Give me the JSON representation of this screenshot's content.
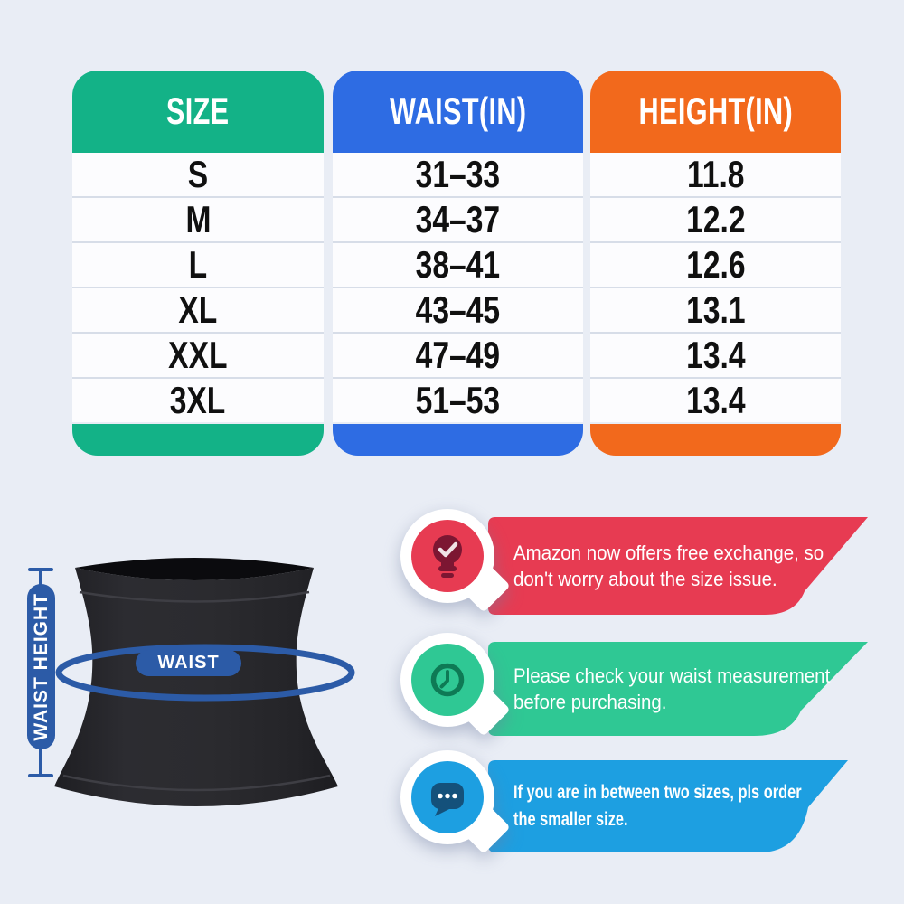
{
  "page": {
    "background": "#e9edf5",
    "row_background": "#fcfcfe",
    "row_separator": "#d7dde8",
    "cell_text_color": "#101010"
  },
  "chart_data": {
    "type": "table",
    "columns": [
      {
        "label": "SIZE",
        "color": "#13b287"
      },
      {
        "label": "WAIST(IN)",
        "color": "#2e6ce3"
      },
      {
        "label": "HEIGHT(IN)",
        "color": "#f2691c"
      }
    ],
    "rows": [
      [
        "S",
        "31–33",
        "11.8"
      ],
      [
        "M",
        "34–37",
        "12.2"
      ],
      [
        "L",
        "38–41",
        "12.6"
      ],
      [
        "XL",
        "43–45",
        "13.1"
      ],
      [
        "XXL",
        "47–49",
        "13.4"
      ],
      [
        "3XL",
        "51–53",
        "13.4"
      ]
    ]
  },
  "diagram": {
    "waist_tag": "WAIST",
    "height_tag": "WAIST HEIGHT",
    "accent": "#2c5ba7",
    "garment_color": "#2b2b2f"
  },
  "callouts": [
    {
      "icon": "lightbulb-check-icon",
      "color": "#e73b52",
      "icon_dark": "#7c1632",
      "lines": [
        "Amazon now offers free exchange, so",
        "don't worry about the size issue."
      ]
    },
    {
      "icon": "clock-icon",
      "color": "#2fc894",
      "icon_dark": "#0e7a55",
      "lines": [
        "Please check your waist measurement",
        "before purchasing."
      ]
    },
    {
      "icon": "chat-dots-icon",
      "color": "#1d9fe1",
      "icon_dark": "#14517b",
      "lines": [
        "If you are in between two sizes, pls order",
        "the smaller size."
      ]
    }
  ]
}
